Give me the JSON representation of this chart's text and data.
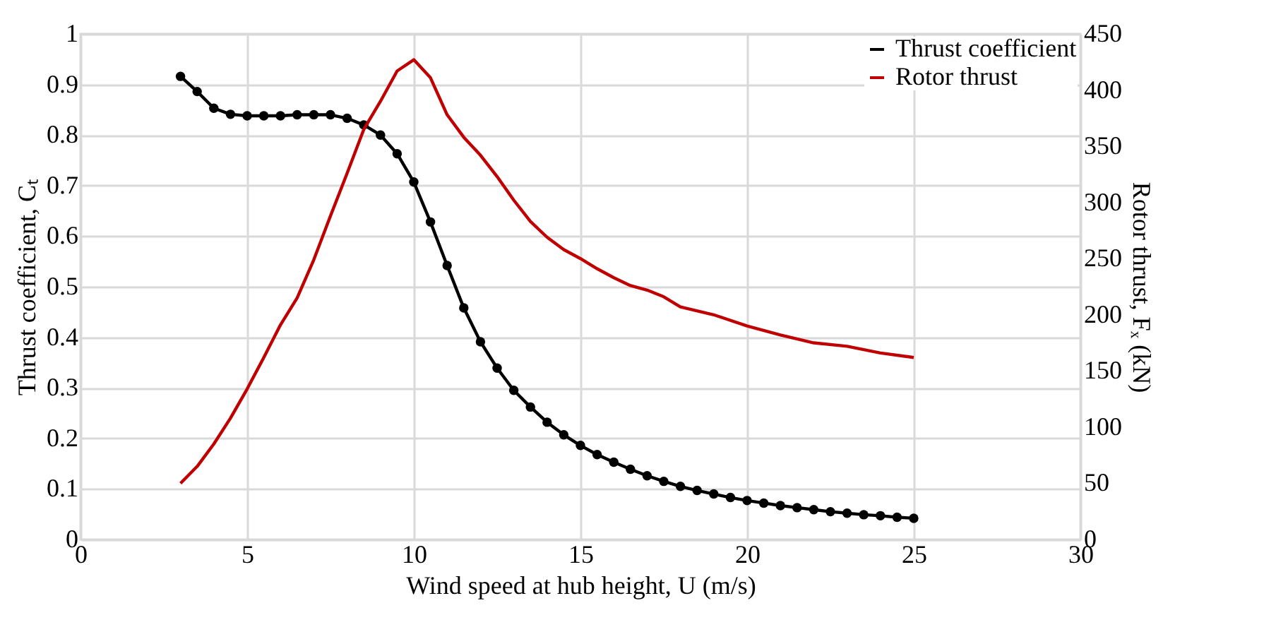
{
  "chart_data": {
    "type": "line",
    "xlabel": "Wind speed at hub height, U (m/s)",
    "ylabel": "Thrust coefficient, Cₜ",
    "y2label": "Rotor thrust, Fₓ (kN)",
    "xlim": [
      0,
      30
    ],
    "xticks": [
      0,
      5,
      10,
      15,
      20,
      25,
      30
    ],
    "ylim": [
      0,
      1
    ],
    "yticks": [
      0,
      0.1,
      0.2,
      0.3,
      0.4,
      0.5,
      0.6,
      0.7,
      0.8,
      0.9,
      1
    ],
    "y2lim": [
      0,
      450
    ],
    "y2ticks": [
      0,
      50,
      100,
      150,
      200,
      250,
      300,
      350,
      400,
      450
    ],
    "grid": true,
    "legend": "top right",
    "series": [
      {
        "name": "Thrust coefficient",
        "color": "#000000",
        "marker": "circle",
        "x": [
          3,
          3.5,
          4,
          4.5,
          5,
          5.5,
          6,
          6.5,
          7,
          7.5,
          8,
          8.5,
          9,
          9.5,
          10,
          10.5,
          11,
          11.5,
          12,
          12.5,
          13,
          13.5,
          14,
          14.5,
          15,
          15.5,
          16,
          16.5,
          17,
          17.5,
          18,
          18.5,
          19,
          19.5,
          20,
          20.5,
          21,
          21.5,
          22,
          22.5,
          23,
          23.5,
          24,
          24.5,
          25
        ],
        "values": [
          0.916,
          0.886,
          0.853,
          0.841,
          0.838,
          0.838,
          0.838,
          0.84,
          0.84,
          0.84,
          0.833,
          0.82,
          0.8,
          0.763,
          0.707,
          0.628,
          0.542,
          0.458,
          0.391,
          0.339,
          0.295,
          0.262,
          0.232,
          0.207,
          0.186,
          0.168,
          0.153,
          0.139,
          0.126,
          0.115,
          0.105,
          0.097,
          0.09,
          0.083,
          0.077,
          0.072,
          0.067,
          0.063,
          0.059,
          0.055,
          0.052,
          0.049,
          0.047,
          0.044,
          0.042
        ]
      },
      {
        "name": "Rotor thrust",
        "color": "#c00000",
        "marker": "none",
        "axis": "y2",
        "x": [
          3,
          3.5,
          4,
          4.5,
          5,
          5.5,
          6,
          6.5,
          7,
          7.5,
          8,
          8.5,
          9,
          9.5,
          10,
          10.5,
          11,
          11.5,
          12,
          12.5,
          13,
          13.5,
          14,
          14.5,
          15,
          15.5,
          16,
          16.5,
          17,
          17.5,
          18,
          19,
          20,
          21,
          22,
          23,
          24,
          25
        ],
        "values": [
          50,
          65,
          85,
          108,
          134,
          162,
          191,
          215,
          249,
          288,
          326,
          365,
          390,
          417,
          427,
          411,
          378,
          358,
          342,
          323,
          302,
          283,
          269,
          258,
          250,
          241,
          233,
          226,
          222,
          216,
          207,
          200,
          190,
          182,
          175,
          172,
          166,
          162
        ]
      }
    ]
  }
}
